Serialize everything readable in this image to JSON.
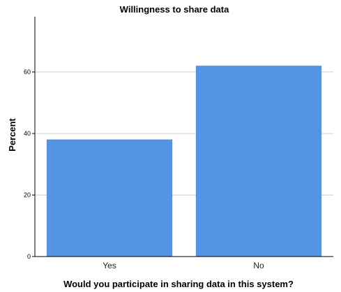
{
  "chart_data": {
    "type": "bar",
    "title": "Willingness to share data",
    "xlabel": "Would you participate in sharing data in this system?",
    "ylabel": "Percent",
    "categories": [
      "Yes",
      "No"
    ],
    "values": [
      38,
      62
    ],
    "ylim": [
      0,
      78
    ],
    "yticks": [
      0,
      20,
      40,
      60
    ],
    "grid": true,
    "legend": "none",
    "bar_color": "#5394e4",
    "grid_color": "#d0d0d0"
  }
}
